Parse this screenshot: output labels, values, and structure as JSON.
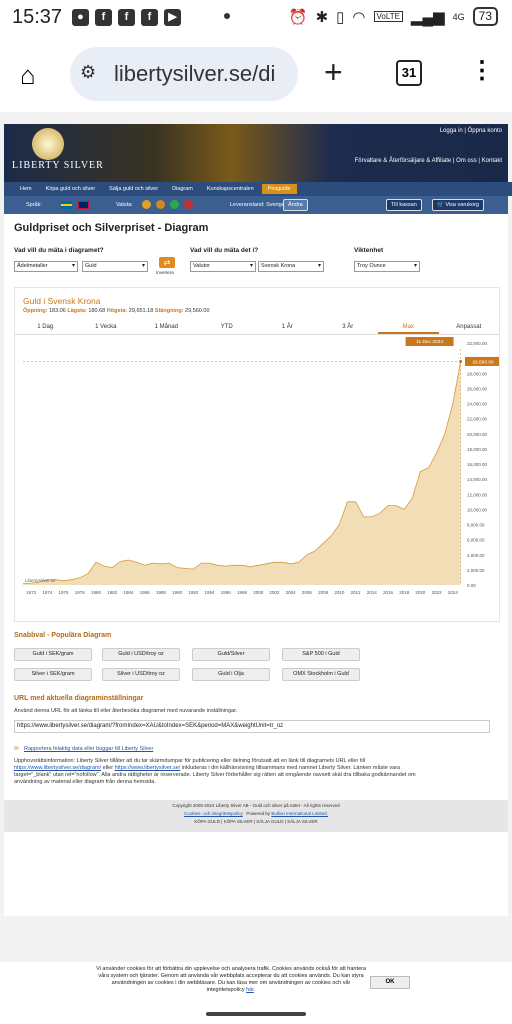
{
  "status": {
    "time": "15:37",
    "battery": "73",
    "network": "4G"
  },
  "browser": {
    "url": "libertysilver.se/di",
    "tab_count": "31"
  },
  "header": {
    "logo_text": "LIBERTY SILVER",
    "login": "Logga in | Öppna konto",
    "links": "Förvaltare & Återförsäljare & Affiliate | Om oss | Kontakt"
  },
  "nav": {
    "items": [
      "Hem",
      "Köpa guld och silver",
      "Sälja guld och silver",
      "Diagram",
      "Kunskapscentralen",
      "Prisguide"
    ],
    "active_index": 5
  },
  "subnav": {
    "language_label": "Språk:",
    "currency_label": "Valuta:",
    "country_label": "Leveransland: Sverige",
    "change": "Ändra",
    "checkout": "Till kassan",
    "cart": "Visa varukorg"
  },
  "page_title": "Guldpriset och Silverpriset - Diagram",
  "form": {
    "q1": "Vad vill du mäta i diagramet?",
    "q1_sel1": "Ädelmetaller",
    "q1_sel2": "Guld",
    "invert": "Invertera",
    "q2": "Vad vill du mäta det i?",
    "q2_sel1": "Valutor",
    "q2_sel2": "Svensk Krona",
    "q3": "Viktenhet",
    "q3_sel": "Troy Ounce"
  },
  "chart_box": {
    "title": "Guld i Svensk Krona",
    "stats": {
      "open_label": "Öppning:",
      "open": "183.06",
      "low_label": "Lägsta:",
      "low": "180.68",
      "high_label": "Högsta:",
      "high": "29,651.18",
      "close_label": "Stängning:",
      "close": "29,560.00"
    },
    "tabs": [
      "1 Dag",
      "1 Vecka",
      "1 Månad",
      "YTD",
      "1 År",
      "3 År",
      "Max",
      "Anpassat"
    ],
    "active_tab": 6,
    "date_label": "11 Dec 2024",
    "value_label": "29,560.00",
    "watermark": "LibertySilver.se"
  },
  "chart_data": {
    "type": "area",
    "title": "Guld i Svensk Krona",
    "x_ticks": [
      "1972",
      "1974",
      "1976",
      "1978",
      "1980",
      "1982",
      "1984",
      "1986",
      "1988",
      "1990",
      "1992",
      "1994",
      "1996",
      "1998",
      "2000",
      "2002",
      "2004",
      "2006",
      "2008",
      "2010",
      "2012",
      "2014",
      "2016",
      "2018",
      "2020",
      "2022",
      "2024"
    ],
    "y_ticks": [
      "0.00",
      "2,000.00",
      "4,000.00",
      "6,000.00",
      "8,000.00",
      "10,000.00",
      "12,000.00",
      "14,000.00",
      "16,000.00",
      "18,000.00",
      "20,000.00",
      "22,000.00",
      "24,000.00",
      "26,000.00",
      "28,000.00",
      "30,000.00",
      "32,000.00"
    ],
    "ylim": [
      0,
      32000
    ],
    "xlim": [
      1971,
      2025
    ],
    "x": [
      1971,
      1972,
      1973,
      1974,
      1975,
      1976,
      1977,
      1978,
      1979,
      1980,
      1981,
      1982,
      1983,
      1984,
      1985,
      1986,
      1987,
      1988,
      1989,
      1990,
      1991,
      1992,
      1993,
      1994,
      1995,
      1996,
      1997,
      1998,
      1999,
      2000,
      2001,
      2002,
      2003,
      2004,
      2005,
      2006,
      2007,
      2008,
      2009,
      2010,
      2011,
      2012,
      2013,
      2014,
      2015,
      2016,
      2017,
      2018,
      2019,
      2020,
      2021,
      2022,
      2023,
      2024,
      2024.95
    ],
    "values": [
      183,
      250,
      400,
      700,
      700,
      550,
      700,
      950,
      1500,
      3000,
      2500,
      2300,
      3100,
      3300,
      3000,
      2600,
      2900,
      2800,
      2900,
      2300,
      2200,
      2100,
      2900,
      2900,
      2600,
      2500,
      2600,
      2600,
      2400,
      2600,
      2800,
      3000,
      3000,
      2800,
      3000,
      4000,
      4500,
      5500,
      6500,
      8000,
      11000,
      11000,
      9000,
      9000,
      9500,
      10500,
      10500,
      10000,
      11500,
      15000,
      15500,
      17500,
      20000,
      24000,
      29560
    ],
    "grid": false,
    "color": "#e8c37a"
  },
  "quick": {
    "heading": "Snabbval - Populära Diagram",
    "row1": [
      "Guld i SEK/gram",
      "Guld i USD/troy oz",
      "Guld/Silver",
      "S&P 500 i Guld"
    ],
    "row2": [
      "Silver i SEK/gram",
      "Silver i USD/troy oz",
      "Guld i Olja",
      "OMX Stockholm i Guld"
    ]
  },
  "urlsec": {
    "heading": "URL med aktuella diagraminställningar",
    "desc": "Använd denna URL för att länka till eller återbesöka diagramet med nuvarande inställningar.",
    "value": "https://www.libertysilver.se/diagram/?fromIndex=XAU&toIndex=SEK&period=MAX&weightUnit=tr_oz",
    "report": "Rapportera felaktig data eller buggar till Liberty Silver"
  },
  "copyright": {
    "l1": "Upphovsrättsinformation: Liberty Silver tillåter att du tar skärmdumpar för publicering eller delning förutsatt att en länk till diagramets URL eller till",
    "link1": "https://www.libertysilver.se/diagram/",
    "mid": " eller ",
    "link2": "https://www.libertysilver.se/",
    "l2": " inkluderas i din källhänvisning tillsammans med namnet Liberty Silver. Länken måste vara",
    "l3": "target=\"_blank\" utan rel=\"nofollow\". Alla andra rättigheter är reserverade. Liberty Silver förbehåller sig rätten att omgående oavsett skäl dra tillbaka godkännandet om",
    "l4": "användning av material eller diagram från denna hemsida."
  },
  "footer": {
    "line1": "Copyright 2009-2024 Liberty Silver AB - Guld och silver på nätet - All rights reserved",
    "cookie_link": "Cookies- och integritetspolicy",
    "powered": "Powered by",
    "powered_link": "Bullion International Limited.",
    "line3": "KÖPA GULD | KÖPA SILVER | SÄLJA GULD | SÄLJA SILVER"
  },
  "cookie": {
    "text": "Vi använder cookies för att förbättra din upplevelse och analysera trafik. Cookies används också för att hantera våra system och tjänster. Genom att använda vår webbplats accepterar du att cookies används. Du kan styra användningen av cookies i din webbläsare. Du kan läsa mer om användningen av cookies och vår integritetspolicy",
    "link": "här",
    "ok": "OK"
  }
}
